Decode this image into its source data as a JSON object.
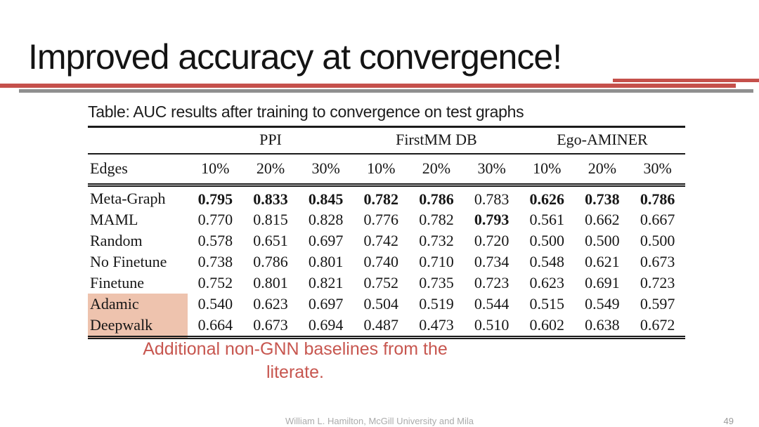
{
  "title": "Improved accuracy at convergence!",
  "note": {
    "line1": "Additional non-GNN baselines from the",
    "line2": "literate."
  },
  "footer": {
    "credit": "William L. Hamilton, McGill University and Mila",
    "page_number": "49"
  },
  "colors": {
    "accent_red": "#c5504b",
    "divider_gray": "#8f8f8f",
    "highlight_pink": "#eec3ae",
    "note_red": "#c7564f"
  },
  "table": {
    "caption": "Table: AUC results after training to convergence on test graphs",
    "groups": [
      "PPI",
      "FirstMM DB",
      "Ego-AMINER"
    ],
    "edges_label": "Edges",
    "percent_headers": [
      "10%",
      "20%",
      "30%",
      "10%",
      "20%",
      "30%",
      "10%",
      "20%",
      "30%"
    ],
    "rows": [
      {
        "label": "Meta-Graph",
        "highlight": false,
        "values": [
          "0.795",
          "0.833",
          "0.845",
          "0.782",
          "0.786",
          "0.783",
          "0.626",
          "0.738",
          "0.786"
        ],
        "bold": [
          1,
          1,
          1,
          1,
          1,
          0,
          1,
          1,
          1
        ]
      },
      {
        "label": "MAML",
        "highlight": false,
        "values": [
          "0.770",
          "0.815",
          "0.828",
          "0.776",
          "0.782",
          "0.793",
          "0.561",
          "0.662",
          "0.667"
        ],
        "bold": [
          0,
          0,
          0,
          0,
          0,
          1,
          0,
          0,
          0
        ]
      },
      {
        "label": "Random",
        "highlight": false,
        "values": [
          "0.578",
          "0.651",
          "0.697",
          "0.742",
          "0.732",
          "0.720",
          "0.500",
          "0.500",
          "0.500"
        ],
        "bold": [
          0,
          0,
          0,
          0,
          0,
          0,
          0,
          0,
          0
        ]
      },
      {
        "label": "No Finetune",
        "highlight": false,
        "values": [
          "0.738",
          "0.786",
          "0.801",
          "0.740",
          "0.710",
          "0.734",
          "0.548",
          "0.621",
          "0.673"
        ],
        "bold": [
          0,
          0,
          0,
          0,
          0,
          0,
          0,
          0,
          0
        ]
      },
      {
        "label": "Finetune",
        "highlight": false,
        "values": [
          "0.752",
          "0.801",
          "0.821",
          "0.752",
          "0.735",
          "0.723",
          "0.623",
          "0.691",
          "0.723"
        ],
        "bold": [
          0,
          0,
          0,
          0,
          0,
          0,
          0,
          0,
          0
        ]
      },
      {
        "label": "Adamic",
        "highlight": true,
        "values": [
          "0.540",
          "0.623",
          "0.697",
          "0.504",
          "0.519",
          "0.544",
          "0.515",
          "0.549",
          "0.597"
        ],
        "bold": [
          0,
          0,
          0,
          0,
          0,
          0,
          0,
          0,
          0
        ]
      },
      {
        "label": "Deepwalk",
        "highlight": true,
        "values": [
          "0.664",
          "0.673",
          "0.694",
          "0.487",
          "0.473",
          "0.510",
          "0.602",
          "0.638",
          "0.672"
        ],
        "bold": [
          0,
          0,
          0,
          0,
          0,
          0,
          0,
          0,
          0
        ]
      }
    ]
  }
}
